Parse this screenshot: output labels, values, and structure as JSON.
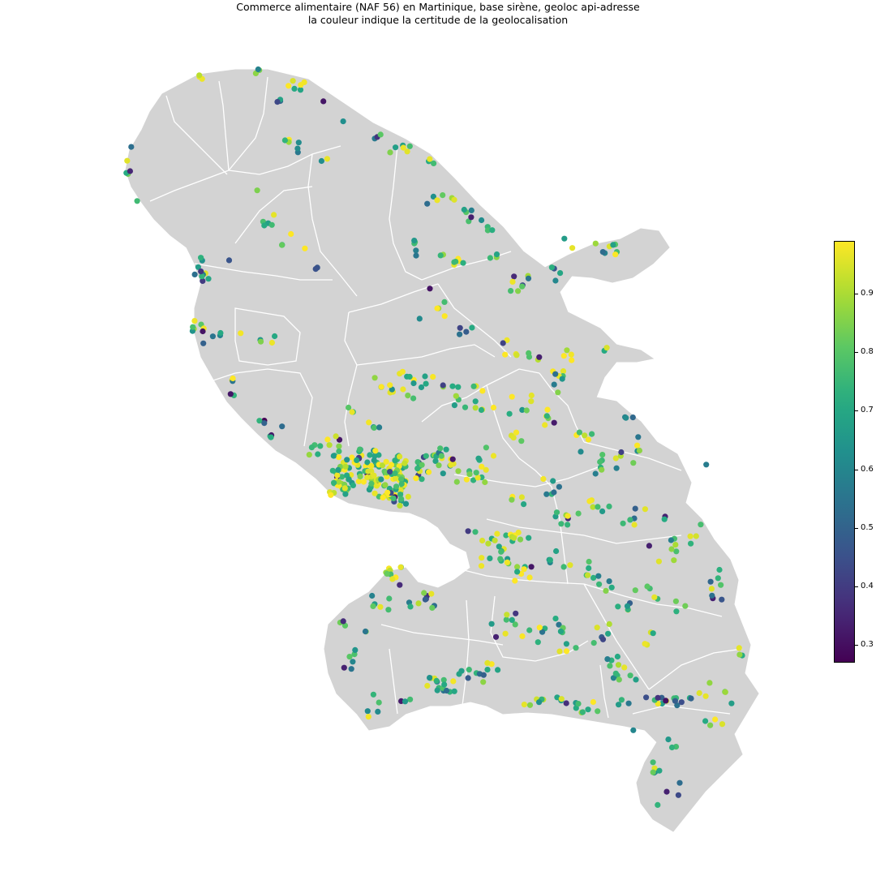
{
  "title": {
    "line1": "Commerce alimentaire (NAF 56) en Martinique, base sirène, geoloc api-adresse",
    "line2": "la couleur indique la certitude de la geolocalisation"
  },
  "map": {
    "land_color": "#d3d3d3",
    "border_color": "#ffffff",
    "region": "Martinique"
  },
  "colorbar": {
    "colormap": "viridis",
    "min": 0.27,
    "max": 0.99,
    "ticks": [
      {
        "value": 0.3,
        "label": "0.3"
      },
      {
        "value": 0.4,
        "label": "0.4"
      },
      {
        "value": 0.5,
        "label": "0.5"
      },
      {
        "value": 0.6,
        "label": "0.6"
      },
      {
        "value": 0.7,
        "label": "0.7"
      },
      {
        "value": 0.8,
        "label": "0.8"
      },
      {
        "value": 0.9,
        "label": "0.9"
      }
    ]
  },
  "chart_data": {
    "type": "scatter",
    "description_source": "geolocated food businesses colored by geolocation certainty",
    "color_range": [
      0.27,
      0.99
    ],
    "series": [
      {
        "value_range": [
          0.9,
          0.99
        ],
        "color": "#fde725"
      },
      {
        "value_range": [
          0.8,
          0.9
        ],
        "color": "#7ad151"
      },
      {
        "value_range": [
          0.7,
          0.8
        ],
        "color": "#22a884"
      },
      {
        "value_range": [
          0.6,
          0.7
        ],
        "color": "#2a788e"
      },
      {
        "value_range": [
          0.5,
          0.6
        ],
        "color": "#414487"
      },
      {
        "value_range": [
          0.27,
          0.5
        ],
        "color": "#440154"
      }
    ]
  }
}
